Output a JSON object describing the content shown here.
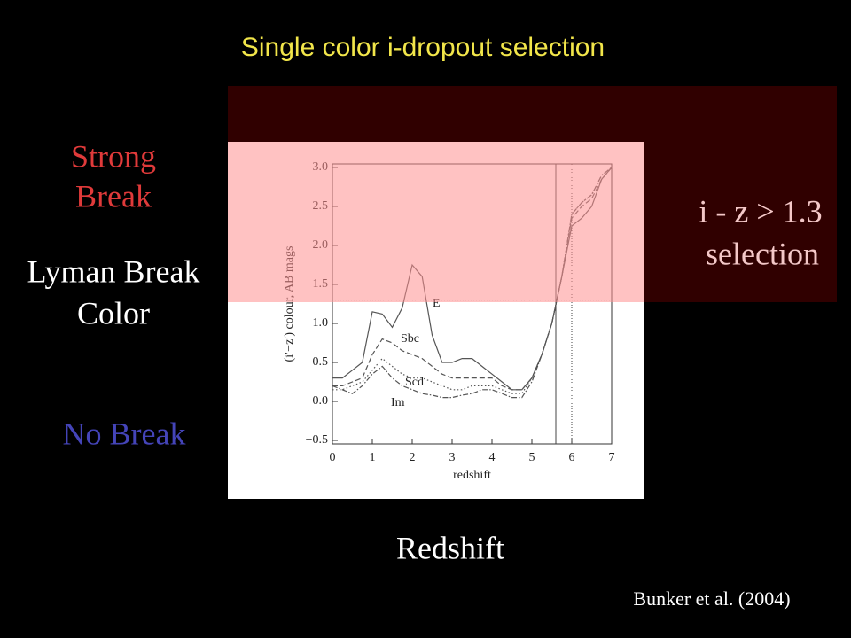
{
  "slide": {
    "title": "Single color i-dropout selection",
    "strong_break": [
      "Strong",
      "Break"
    ],
    "lyman_break_color": [
      "Lyman Break",
      "Color"
    ],
    "no_break": "No Break",
    "selection": [
      "i - z > 1.3",
      "selection"
    ],
    "x_caption": "Redshift",
    "citation": "Bunker et al. (2004)"
  },
  "chart_data": {
    "type": "line",
    "xlabel": "redshift",
    "ylabel": "(i′−z′) colour, AB mags",
    "x": [
      0,
      0.25,
      0.5,
      0.75,
      1,
      1.25,
      1.5,
      1.75,
      2,
      2.25,
      2.5,
      2.75,
      3,
      3.25,
      3.5,
      3.75,
      4,
      4.25,
      4.5,
      4.75,
      5,
      5.25,
      5.5,
      5.75,
      6,
      6.25,
      6.5,
      6.75,
      7
    ],
    "series": [
      {
        "name": "E",
        "color": "#555555",
        "style": "solid",
        "values": [
          0.3,
          0.3,
          0.4,
          0.5,
          1.15,
          1.12,
          0.95,
          1.2,
          1.75,
          1.6,
          0.85,
          0.5,
          0.5,
          0.55,
          0.55,
          0.45,
          0.35,
          0.25,
          0.15,
          0.15,
          0.3,
          0.6,
          1.0,
          1.6,
          2.25,
          2.35,
          2.5,
          2.85,
          3.0
        ]
      },
      {
        "name": "Sbc",
        "color": "#555555",
        "style": "dashed",
        "values": [
          0.2,
          0.2,
          0.25,
          0.3,
          0.6,
          0.8,
          0.75,
          0.65,
          0.6,
          0.55,
          0.45,
          0.35,
          0.3,
          0.3,
          0.3,
          0.3,
          0.3,
          0.2,
          0.15,
          0.15,
          0.3,
          0.6,
          1.0,
          1.6,
          2.35,
          2.5,
          2.6,
          2.85,
          3.0
        ]
      },
      {
        "name": "Scd",
        "color": "#555555",
        "style": "dotted",
        "values": [
          0.15,
          0.15,
          0.2,
          0.25,
          0.4,
          0.55,
          0.45,
          0.35,
          0.3,
          0.3,
          0.25,
          0.2,
          0.15,
          0.15,
          0.2,
          0.2,
          0.2,
          0.15,
          0.1,
          0.1,
          0.3,
          0.6,
          1.0,
          1.6,
          2.4,
          2.55,
          2.65,
          2.9,
          3.0
        ]
      },
      {
        "name": "Im",
        "color": "#555555",
        "style": "dashdot",
        "values": [
          0.2,
          0.15,
          0.1,
          0.2,
          0.35,
          0.45,
          0.3,
          0.2,
          0.15,
          0.1,
          0.08,
          0.05,
          0.05,
          0.08,
          0.1,
          0.15,
          0.15,
          0.1,
          0.05,
          0.05,
          0.25,
          0.6,
          1.0,
          1.6,
          2.4,
          2.55,
          2.65,
          2.9,
          3.0
        ]
      }
    ],
    "threshold": 1.3,
    "vlines": [
      5.6,
      6.0
    ],
    "xlim": [
      0,
      7
    ],
    "xticks": [
      0,
      1,
      2,
      3,
      4,
      5,
      6,
      7
    ],
    "ylim": [
      -0.5,
      3.0
    ],
    "yticks": [
      {
        "value": -0.5,
        "label": "−0.5"
      },
      {
        "value": 0,
        "label": "0.0"
      },
      0.5,
      {
        "value": 1,
        "label": "1.0"
      },
      1.5,
      {
        "value": 2,
        "label": "2.0"
      },
      2.5,
      {
        "value": 3,
        "label": "3.0"
      }
    ]
  }
}
